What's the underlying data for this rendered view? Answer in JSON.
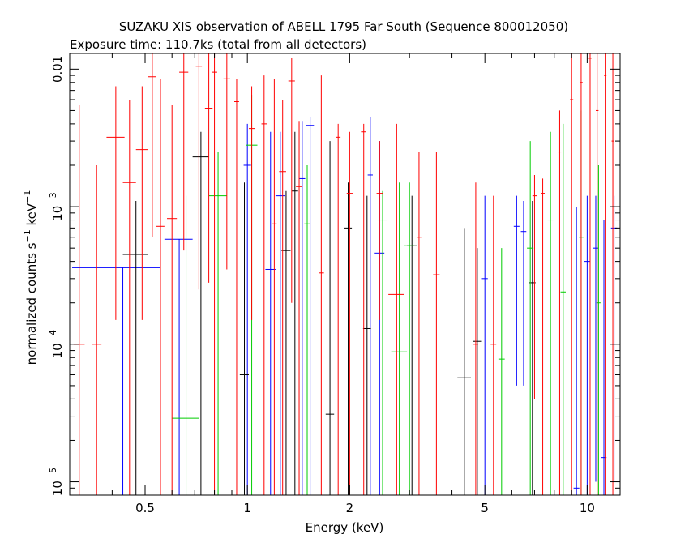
{
  "chart_data": {
    "type": "scatter",
    "title": "SUZAKU XIS observation of ABELL 1795 Far South (Sequence 800012050)",
    "subtitle": "Exposure time: 110.7ks (total from all detectors)",
    "xlabel": "Energy (keV)",
    "ylabel": "normalized counts s^-1 keV^-1",
    "xscale": "log",
    "yscale": "log",
    "xlim": [
      0.3,
      12.5
    ],
    "ylim": [
      8e-06,
      0.013
    ],
    "x_ticks": [
      0.5,
      1,
      2,
      5,
      10
    ],
    "x_tick_labels": [
      "0.5",
      "1",
      "2",
      "5",
      "10"
    ],
    "y_ticks": [
      1e-05,
      0.0001,
      0.001,
      0.01
    ],
    "y_tick_labels": [
      {
        "base": "10",
        "exp": "−5"
      },
      {
        "base": "10",
        "exp": "−4"
      },
      {
        "base": "10",
        "exp": "−3"
      },
      {
        "base": "",
        "exp": "",
        "text": "0.01"
      }
    ],
    "grid": false,
    "legend": "none",
    "series": [
      {
        "color": "#0000ff",
        "points": [
          {
            "x": 0.43,
            "xerr": 0.125,
            "y": 0.00036,
            "ylo": 8e-06,
            "yhi": 0.00036
          },
          {
            "x": 0.63,
            "xerr": 0.06,
            "y": 0.00058,
            "ylo": 8e-06,
            "yhi": 0.00058
          },
          {
            "x": 1.0,
            "xerr": 0.025,
            "y": 0.002,
            "ylo": 8e-06,
            "yhi": 0.004
          },
          {
            "x": 1.17,
            "xerr": 0.04,
            "y": 0.00035,
            "ylo": 8e-06,
            "yhi": 0.0035
          },
          {
            "x": 1.25,
            "xerr": 0.04,
            "y": 0.0012,
            "ylo": 8e-06,
            "yhi": 0.0035
          },
          {
            "x": 1.45,
            "xerr": 0.03,
            "y": 0.0016,
            "ylo": 8e-06,
            "yhi": 0.0042
          },
          {
            "x": 1.53,
            "xerr": 0.04,
            "y": 0.0039,
            "ylo": 8e-06,
            "yhi": 0.0045
          },
          {
            "x": 2.3,
            "xerr": 0.04,
            "y": 0.0017,
            "ylo": 8e-06,
            "yhi": 0.0045
          },
          {
            "x": 2.45,
            "xerr": 0.08,
            "y": 0.00046,
            "ylo": 8e-06,
            "yhi": 0.003
          },
          {
            "x": 5.0,
            "xerr": 0.1,
            "y": 0.0003,
            "ylo": 8e-06,
            "yhi": 0.0012
          },
          {
            "x": 6.2,
            "xerr": 0.12,
            "y": 0.00072,
            "ylo": 5e-05,
            "yhi": 0.0012
          },
          {
            "x": 6.5,
            "xerr": 0.12,
            "y": 0.00066,
            "ylo": 5e-05,
            "yhi": 0.0011
          },
          {
            "x": 9.3,
            "xerr": 0.18,
            "y": 9e-06,
            "ylo": 8e-06,
            "yhi": 0.001
          },
          {
            "x": 10.0,
            "xerr": 0.2,
            "y": 0.0004,
            "ylo": 8e-06,
            "yhi": 0.0012
          },
          {
            "x": 10.6,
            "xerr": 0.2,
            "y": 0.0005,
            "ylo": 1e-05,
            "yhi": 0.0012
          },
          {
            "x": 11.2,
            "xerr": 0.2,
            "y": 1.5e-05,
            "ylo": 8e-06,
            "yhi": 0.0008
          },
          {
            "x": 12.0,
            "xerr": 0.25,
            "y": 0.0007,
            "ylo": 1e-05,
            "yhi": 0.0012
          }
        ]
      },
      {
        "color": "#000000",
        "points": [
          {
            "x": 0.47,
            "xerr": 0.04,
            "y": 0.00045,
            "ylo": 8e-06,
            "yhi": 0.0011
          },
          {
            "x": 0.73,
            "xerr": 0.04,
            "y": 0.0023,
            "ylo": 8e-06,
            "yhi": 0.0035
          },
          {
            "x": 0.98,
            "xerr": 0.03,
            "y": 6e-05,
            "ylo": 8e-06,
            "yhi": 0.0015
          },
          {
            "x": 1.3,
            "xerr": 0.04,
            "y": 0.00048,
            "ylo": 8e-06,
            "yhi": 0.0013
          },
          {
            "x": 1.38,
            "xerr": 0.03,
            "y": 0.0013,
            "ylo": 8e-06,
            "yhi": 0.0035
          },
          {
            "x": 1.75,
            "xerr": 0.05,
            "y": 3.1e-05,
            "ylo": 8e-06,
            "yhi": 0.003
          },
          {
            "x": 1.98,
            "xerr": 0.05,
            "y": 0.0007,
            "ylo": 8e-06,
            "yhi": 0.0015
          },
          {
            "x": 2.25,
            "xerr": 0.06,
            "y": 0.00013,
            "ylo": 8e-06,
            "yhi": 0.0012
          },
          {
            "x": 3.05,
            "xerr": 0.1,
            "y": 0.00052,
            "ylo": 8e-06,
            "yhi": 0.0012
          },
          {
            "x": 4.35,
            "xerr": 0.2,
            "y": 5.7e-05,
            "ylo": 8e-06,
            "yhi": 0.0007
          },
          {
            "x": 4.75,
            "xerr": 0.15,
            "y": 0.000105,
            "ylo": 8e-06,
            "yhi": 0.0005
          },
          {
            "x": 6.9,
            "xerr": 0.15,
            "y": 0.00028,
            "ylo": 8e-06,
            "yhi": 0.0011
          }
        ]
      },
      {
        "color": "#00cc00",
        "points": [
          {
            "x": 0.66,
            "xerr": 0.06,
            "y": 2.9e-05,
            "ylo": 8e-06,
            "yhi": 0.0012
          },
          {
            "x": 0.82,
            "xerr": 0.05,
            "y": 0.0012,
            "ylo": 8e-06,
            "yhi": 0.0025
          },
          {
            "x": 1.03,
            "xerr": 0.04,
            "y": 0.0028,
            "ylo": 8e-06,
            "yhi": 0.0065
          },
          {
            "x": 1.5,
            "xerr": 0.03,
            "y": 0.00075,
            "ylo": 8e-06,
            "yhi": 0.002
          },
          {
            "x": 2.5,
            "xerr": 0.08,
            "y": 0.0008,
            "ylo": 8e-06,
            "yhi": 0.0013
          },
          {
            "x": 2.8,
            "xerr": 0.15,
            "y": 8.8e-05,
            "ylo": 8e-06,
            "yhi": 0.0015
          },
          {
            "x": 3.0,
            "xerr": 0.1,
            "y": 0.00052,
            "ylo": 8e-06,
            "yhi": 0.0015
          },
          {
            "x": 5.6,
            "xerr": 0.12,
            "y": 7.8e-05,
            "ylo": 8e-06,
            "yhi": 0.0005
          },
          {
            "x": 6.8,
            "xerr": 0.15,
            "y": 0.0005,
            "ylo": 8e-06,
            "yhi": 0.003
          },
          {
            "x": 7.8,
            "xerr": 0.15,
            "y": 0.0008,
            "ylo": 8e-06,
            "yhi": 0.0035
          },
          {
            "x": 8.5,
            "xerr": 0.15,
            "y": 0.00024,
            "ylo": 8e-06,
            "yhi": 0.004
          },
          {
            "x": 9.6,
            "xerr": 0.15,
            "y": 0.0006,
            "ylo": 8e-06,
            "yhi": 0.005
          },
          {
            "x": 10.8,
            "xerr": 0.15,
            "y": 0.0002,
            "ylo": 8e-06,
            "yhi": 0.002
          }
        ]
      },
      {
        "color": "#ff0000",
        "points": [
          {
            "x": 0.32,
            "xerr": 0.012,
            "y": 0.0001,
            "ylo": 8e-06,
            "yhi": 0.0055
          },
          {
            "x": 0.36,
            "xerr": 0.012,
            "y": 0.0001,
            "ylo": 8e-06,
            "yhi": 0.002
          },
          {
            "x": 0.41,
            "xerr": 0.025,
            "y": 0.0032,
            "ylo": 0.00015,
            "yhi": 0.0075
          },
          {
            "x": 0.45,
            "xerr": 0.02,
            "y": 0.0015,
            "ylo": 8e-06,
            "yhi": 0.006
          },
          {
            "x": 0.49,
            "xerr": 0.02,
            "y": 0.0026,
            "ylo": 0.00015,
            "yhi": 0.0075
          },
          {
            "x": 0.525,
            "xerr": 0.015,
            "y": 0.0088,
            "ylo": 0.0006,
            "yhi": 0.013
          },
          {
            "x": 0.555,
            "xerr": 0.015,
            "y": 0.00072,
            "ylo": 8e-06,
            "yhi": 0.0085
          },
          {
            "x": 0.6,
            "xerr": 0.02,
            "y": 0.00082,
            "ylo": 8e-06,
            "yhi": 0.0055
          },
          {
            "x": 0.65,
            "xerr": 0.02,
            "y": 0.0095,
            "ylo": 0.00048,
            "yhi": 0.013
          },
          {
            "x": 0.72,
            "xerr": 0.015,
            "y": 0.0105,
            "ylo": 0.00025,
            "yhi": 0.013
          },
          {
            "x": 0.77,
            "xerr": 0.02,
            "y": 0.0052,
            "ylo": 0.00028,
            "yhi": 0.013
          },
          {
            "x": 0.8,
            "xerr": 0.015,
            "y": 0.0095,
            "ylo": 8e-06,
            "yhi": 0.013
          },
          {
            "x": 0.87,
            "xerr": 0.02,
            "y": 0.0085,
            "ylo": 0.00035,
            "yhi": 0.013
          },
          {
            "x": 0.93,
            "xerr": 0.015,
            "y": 0.0058,
            "ylo": 8e-06,
            "yhi": 0.0085
          },
          {
            "x": 1.03,
            "xerr": 0.02,
            "y": 0.0037,
            "ylo": 0.00015,
            "yhi": 0.0075
          },
          {
            "x": 1.12,
            "xerr": 0.02,
            "y": 0.004,
            "ylo": 8e-06,
            "yhi": 0.009
          },
          {
            "x": 1.2,
            "xerr": 0.02,
            "y": 0.00075,
            "ylo": 8e-06,
            "yhi": 0.0085
          },
          {
            "x": 1.27,
            "xerr": 0.03,
            "y": 0.0018,
            "ylo": 8e-06,
            "yhi": 0.006
          },
          {
            "x": 1.35,
            "xerr": 0.03,
            "y": 0.0082,
            "ylo": 0.0002,
            "yhi": 0.012
          },
          {
            "x": 1.42,
            "xerr": 0.03,
            "y": 0.0014,
            "ylo": 8e-06,
            "yhi": 0.0042
          },
          {
            "x": 1.65,
            "xerr": 0.03,
            "y": 0.00033,
            "ylo": 8e-06,
            "yhi": 0.009
          },
          {
            "x": 1.85,
            "xerr": 0.03,
            "y": 0.0032,
            "ylo": 8e-06,
            "yhi": 0.004
          },
          {
            "x": 2.0,
            "xerr": 0.04,
            "y": 0.00125,
            "ylo": 8e-06,
            "yhi": 0.0035
          },
          {
            "x": 2.2,
            "xerr": 0.04,
            "y": 0.0035,
            "ylo": 8e-06,
            "yhi": 0.004
          },
          {
            "x": 2.45,
            "xerr": 0.05,
            "y": 0.00125,
            "ylo": 0.00015,
            "yhi": 0.003
          },
          {
            "x": 2.75,
            "xerr": 0.15,
            "y": 0.00023,
            "ylo": 8e-06,
            "yhi": 0.004
          },
          {
            "x": 3.2,
            "xerr": 0.05,
            "y": 0.0006,
            "ylo": 8e-06,
            "yhi": 0.0025
          },
          {
            "x": 3.6,
            "xerr": 0.08,
            "y": 0.00032,
            "ylo": 8e-06,
            "yhi": 0.0025
          },
          {
            "x": 4.7,
            "xerr": 0.08,
            "y": 0.0001,
            "ylo": 8e-06,
            "yhi": 0.0015
          },
          {
            "x": 5.3,
            "xerr": 0.1,
            "y": 0.0001,
            "ylo": 8e-06,
            "yhi": 0.0012
          },
          {
            "x": 7.0,
            "xerr": 0.1,
            "y": 0.0012,
            "ylo": 4e-05,
            "yhi": 0.0017
          },
          {
            "x": 7.4,
            "xerr": 0.1,
            "y": 0.00125,
            "ylo": 8e-06,
            "yhi": 0.0016
          },
          {
            "x": 8.3,
            "xerr": 0.1,
            "y": 0.0025,
            "ylo": 8e-06,
            "yhi": 0.005
          },
          {
            "x": 9.0,
            "xerr": 0.1,
            "y": 0.006,
            "ylo": 8e-06,
            "yhi": 0.013
          },
          {
            "x": 9.6,
            "xerr": 0.1,
            "y": 0.008,
            "ylo": 8e-06,
            "yhi": 0.013
          },
          {
            "x": 10.2,
            "xerr": 0.1,
            "y": 0.012,
            "ylo": 8e-06,
            "yhi": 0.013
          },
          {
            "x": 10.7,
            "xerr": 0.1,
            "y": 0.005,
            "ylo": 8e-06,
            "yhi": 0.013
          },
          {
            "x": 11.3,
            "xerr": 0.1,
            "y": 0.009,
            "ylo": 8e-06,
            "yhi": 0.013
          },
          {
            "x": 11.9,
            "xerr": 0.1,
            "y": 0.003,
            "ylo": 8e-06,
            "yhi": 0.013
          }
        ]
      }
    ]
  }
}
